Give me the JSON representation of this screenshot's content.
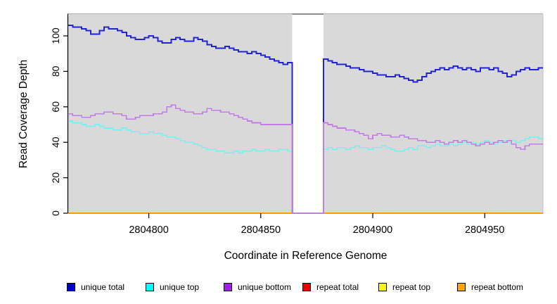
{
  "panel": {
    "background": "#d9d9d9",
    "top_border_color": "#b8b8b8",
    "right_border_color": "#c9c9c9",
    "axis_color": "#000000"
  },
  "gap_region": {
    "x_start": 2804864,
    "x_end": 2804878,
    "fill": "#ffffff",
    "top_border_color": "#8f8f8f"
  },
  "chart_data": {
    "type": "line",
    "step": true,
    "title": "",
    "xlabel": "Coordinate in Reference Genome",
    "ylabel": "Read Coverage Depth",
    "xlim": [
      2804764,
      2804976
    ],
    "ylim": [
      0,
      112.5
    ],
    "x_ticks": [
      2804800,
      2804850,
      2804900,
      2804950
    ],
    "y_ticks": [
      0,
      20,
      40,
      60,
      80,
      100
    ],
    "grid": false,
    "legend_position": "bottom",
    "x_start": 2804764,
    "x_step": 2,
    "draw_order": [
      "repeat total",
      "repeat top",
      "repeat bottom",
      "unique total",
      "unique top",
      "unique bottom"
    ],
    "series": [
      {
        "name": "unique total",
        "legend_color": "#0000cc",
        "line_color": "#2424ce",
        "line_width": 2,
        "values": [
          106,
          105,
          105,
          104,
          103,
          101,
          101,
          103,
          105,
          104,
          104,
          103,
          102,
          100,
          99,
          98,
          98,
          99,
          100,
          99,
          97,
          96,
          96,
          98,
          99,
          98,
          97,
          97,
          99,
          98,
          97,
          95,
          94,
          93,
          93,
          94,
          93,
          92,
          91,
          91,
          90,
          91,
          90,
          89,
          88,
          87,
          86,
          85,
          84,
          85,
          0,
          0,
          0,
          0,
          0,
          0,
          0,
          87,
          86,
          85,
          84,
          84,
          83,
          82,
          82,
          81,
          80,
          80,
          79,
          78,
          78,
          77,
          77,
          78,
          77,
          76,
          75,
          74,
          75,
          77,
          79,
          80,
          81,
          82,
          81,
          82,
          83,
          82,
          81,
          82,
          81,
          80,
          82,
          82,
          81,
          82,
          80,
          79,
          77,
          78,
          80,
          81,
          82,
          81,
          81,
          82
        ]
      },
      {
        "name": "unique top",
        "legend_color": "#00ffff",
        "line_color": "#7deeee",
        "line_width": 1.6,
        "values": [
          52,
          51,
          51,
          50,
          49,
          49,
          50,
          49,
          48,
          48,
          47,
          47,
          48,
          47,
          46,
          46,
          45,
          45,
          46,
          45,
          45,
          44,
          43,
          43,
          42,
          41,
          40,
          40,
          39,
          38,
          37,
          36,
          36,
          35,
          35,
          34,
          34,
          35,
          34,
          35,
          35,
          36,
          35,
          35,
          36,
          35,
          35,
          36,
          36,
          35,
          0,
          0,
          0,
          0,
          0,
          0,
          0,
          36,
          37,
          36,
          37,
          37,
          36,
          37,
          38,
          37,
          37,
          36,
          37,
          37,
          38,
          37,
          36,
          35,
          35,
          36,
          37,
          36,
          38,
          38,
          37,
          38,
          39,
          38,
          38,
          39,
          38,
          39,
          40,
          39,
          40,
          39,
          40,
          41,
          40,
          39,
          40,
          41,
          40,
          41,
          40,
          41,
          42,
          43,
          43,
          42
        ]
      },
      {
        "name": "unique bottom",
        "legend_color": "#a020f0",
        "line_color": "#bf7fe3",
        "line_width": 1.6,
        "values": [
          56,
          55,
          55,
          54,
          54,
          55,
          56,
          56,
          57,
          57,
          56,
          56,
          55,
          53,
          53,
          54,
          55,
          55,
          55,
          56,
          56,
          57,
          60,
          61,
          59,
          58,
          57,
          57,
          56,
          56,
          57,
          59,
          58,
          58,
          57,
          57,
          56,
          55,
          54,
          53,
          52,
          51,
          51,
          50,
          50,
          50,
          50,
          50,
          50,
          50,
          0,
          0,
          0,
          0,
          0,
          0,
          0,
          51,
          50,
          49,
          48,
          48,
          47,
          47,
          46,
          45,
          44,
          42,
          44,
          45,
          44,
          44,
          43,
          43,
          44,
          43,
          42,
          42,
          41,
          41,
          40,
          40,
          41,
          40,
          39,
          40,
          41,
          40,
          41,
          40,
          39,
          38,
          39,
          40,
          39,
          40,
          41,
          40,
          41,
          39,
          37,
          36,
          38,
          39,
          39,
          39
        ]
      },
      {
        "name": "repeat total",
        "legend_color": "#ee0000",
        "line_color": "#ee0000",
        "line_width": 2,
        "const_value": 0
      },
      {
        "name": "repeat top",
        "legend_color": "#ffff00",
        "line_color": "#ffff00",
        "line_width": 2,
        "const_value": 0
      },
      {
        "name": "repeat bottom",
        "legend_color": "#ffa500",
        "line_color": "#ff9c00",
        "line_width": 2,
        "const_value": 0,
        "gap_break": true
      }
    ]
  }
}
